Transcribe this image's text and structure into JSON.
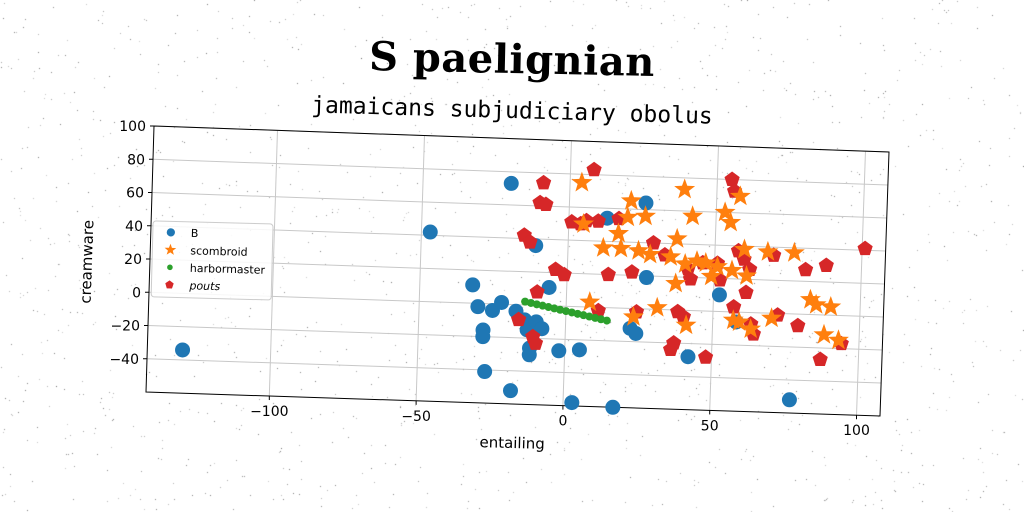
{
  "title": "S paelignian",
  "subtitle": "jamaicans subjudiciary obolus",
  "chart_data": {
    "type": "scatter",
    "title": "jamaicans subjudiciary obolus",
    "suptitle": "S paelignian",
    "xlabel": "entailing",
    "ylabel": "creamware",
    "xlim": [
      -142,
      108
    ],
    "ylim": [
      -60,
      100
    ],
    "xticks": [
      -100,
      -50,
      0,
      50,
      100
    ],
    "yticks": [
      -40,
      -20,
      0,
      20,
      40,
      60,
      80,
      100
    ],
    "xtick_labels": [
      "−100",
      "−50",
      "0",
      "50",
      "100"
    ],
    "ytick_labels": [
      "−40",
      "−20",
      "0",
      "20",
      "40",
      "60",
      "80",
      "100"
    ],
    "grid": true,
    "legend_position": "center-left",
    "series": [
      {
        "name": "B",
        "marker": "circle",
        "color": "#1f77b4",
        "points": [
          [
            -130,
            -34
          ],
          [
            -47,
            42
          ],
          [
            -32,
            11
          ],
          [
            -30,
            -2
          ],
          [
            -28,
            -16
          ],
          [
            -28,
            -20
          ],
          [
            -27,
            -41
          ],
          [
            -25,
            -4
          ],
          [
            -22,
            1
          ],
          [
            -20,
            73
          ],
          [
            -18,
            -52
          ],
          [
            -17,
            -4
          ],
          [
            -14,
            -9
          ],
          [
            -13,
            -15
          ],
          [
            -12,
            -26
          ],
          [
            -12,
            -30
          ],
          [
            -11,
            36
          ],
          [
            -10,
            -10
          ],
          [
            -8,
            -14
          ],
          [
            -6,
            11
          ],
          [
            -2,
            -27
          ],
          [
            5,
            -26
          ],
          [
            3,
            -58
          ],
          [
            17,
            -60
          ],
          [
            13,
            54
          ],
          [
            22,
            -12
          ],
          [
            24,
            -15
          ],
          [
            26,
            64
          ],
          [
            27,
            19
          ],
          [
            42,
            -28
          ],
          [
            52,
            10
          ],
          [
            58,
            -6
          ],
          [
            77,
            -52
          ]
        ]
      },
      {
        "name": "scombroid",
        "marker": "star",
        "color": "#ff7f0e",
        "points": [
          [
            4,
            75
          ],
          [
            5,
            50
          ],
          [
            8,
            3
          ],
          [
            12,
            36
          ],
          [
            17,
            45
          ],
          [
            18,
            36
          ],
          [
            20,
            55
          ],
          [
            21,
            65
          ],
          [
            23,
            -5
          ],
          [
            24,
            35
          ],
          [
            26,
            56
          ],
          [
            28,
            33
          ],
          [
            31,
            1
          ],
          [
            35,
            32
          ],
          [
            37,
            43
          ],
          [
            37,
            16
          ],
          [
            39,
            73
          ],
          [
            40,
            28
          ],
          [
            41,
            -9
          ],
          [
            42,
            57
          ],
          [
            44,
            30
          ],
          [
            47,
            29
          ],
          [
            49,
            21
          ],
          [
            51,
            27
          ],
          [
            53,
            60
          ],
          [
            55,
            54
          ],
          [
            56,
            25
          ],
          [
            57,
            -5
          ],
          [
            58,
            70
          ],
          [
            59,
            -6
          ],
          [
            60,
            38
          ],
          [
            61,
            22
          ],
          [
            63,
            -10
          ],
          [
            68,
            37
          ],
          [
            70,
            -3
          ],
          [
            77,
            37
          ],
          [
            83,
            9
          ],
          [
            85,
            6
          ],
          [
            88,
            -12
          ],
          [
            90,
            5
          ],
          [
            93,
            -15
          ]
        ]
      },
      {
        "name": "harbormaster",
        "marker": "dot",
        "color": "#2ca02c",
        "points": [
          [
            -14.0,
            2.0
          ],
          [
            -12.0,
            1.3
          ],
          [
            -10.0,
            0.6
          ],
          [
            -8.0,
            -0.1
          ],
          [
            -6.0,
            -0.8
          ],
          [
            -4.0,
            -1.5
          ],
          [
            -2.0,
            -2.2
          ],
          [
            0.0,
            -2.9
          ],
          [
            2.0,
            -3.6
          ],
          [
            4.0,
            -4.3
          ],
          [
            6.0,
            -5.0
          ],
          [
            8.0,
            -5.7
          ],
          [
            10.0,
            -6.4
          ],
          [
            12.0,
            -7.1
          ],
          [
            14.0,
            -7.8
          ]
        ]
      },
      {
        "name": "pouts",
        "marker": "pentagon",
        "color": "#d62728",
        "points": [
          [
            -16,
            -9
          ],
          [
            -15,
            42
          ],
          [
            -13,
            38
          ],
          [
            -11,
            -19
          ],
          [
            -10,
            -23
          ],
          [
            -10,
            8
          ],
          [
            -10,
            62
          ],
          [
            -9,
            74
          ],
          [
            -8,
            61
          ],
          [
            -4,
            22
          ],
          [
            -1,
            19
          ],
          [
            1,
            51
          ],
          [
            4,
            50
          ],
          [
            6,
            52
          ],
          [
            8,
            83
          ],
          [
            10,
            52
          ],
          [
            11,
            -2
          ],
          [
            14,
            20
          ],
          [
            17,
            54
          ],
          [
            22,
            22
          ],
          [
            24,
            -2
          ],
          [
            29,
            40
          ],
          [
            33,
            33
          ],
          [
            36,
            -24
          ],
          [
            37,
            -20
          ],
          [
            38,
            -1
          ],
          [
            40,
            -4
          ],
          [
            41,
            25
          ],
          [
            42,
            19
          ],
          [
            46,
            29
          ],
          [
            48,
            -28
          ],
          [
            51,
            29
          ],
          [
            52,
            19
          ],
          [
            55,
            80
          ],
          [
            56,
            73
          ],
          [
            57,
            3
          ],
          [
            58,
            37
          ],
          [
            60,
            32
          ],
          [
            61,
            12
          ],
          [
            62,
            26
          ],
          [
            63,
            -7
          ],
          [
            64,
            -13
          ],
          [
            70,
            35
          ],
          [
            72,
            -1
          ],
          [
            79,
            -7
          ],
          [
            81,
            27
          ],
          [
            87,
            -27
          ],
          [
            88,
            30
          ],
          [
            94,
            -17
          ],
          [
            101,
            41
          ]
        ]
      }
    ]
  }
}
